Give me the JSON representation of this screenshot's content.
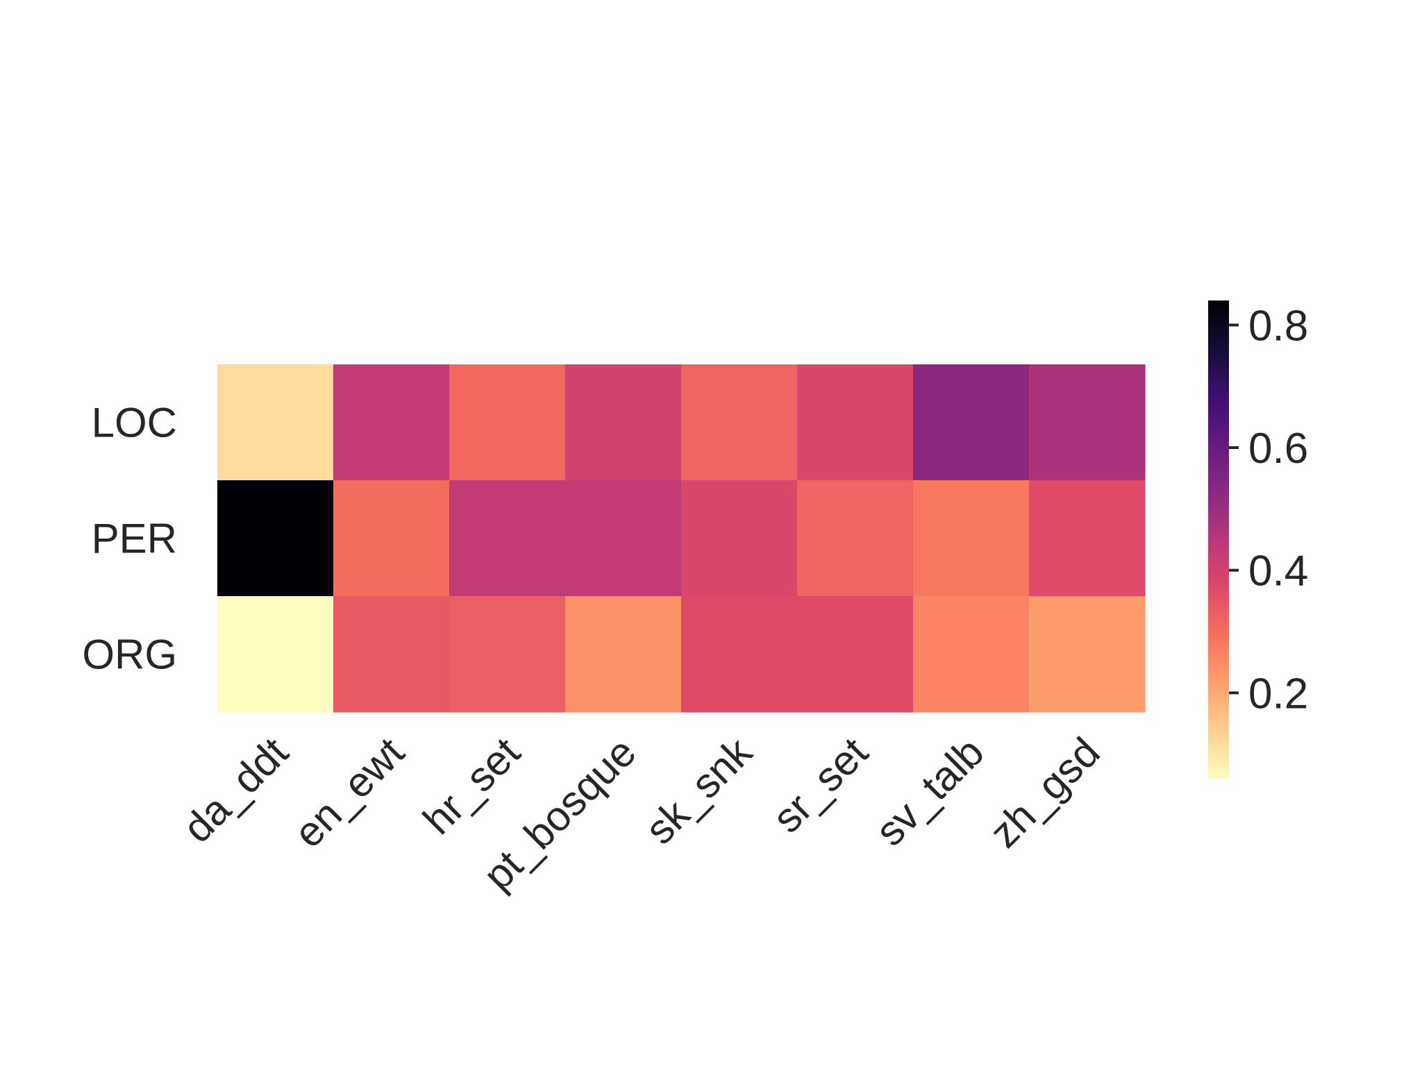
{
  "chart_data": {
    "type": "heatmap",
    "title": "",
    "xlabel": "",
    "ylabel": "",
    "x_categories": [
      "da_ddt",
      "en_ewt",
      "hr_set",
      "pt_bosque",
      "sk_snk",
      "sr_set",
      "sv_talb",
      "zh_gsd"
    ],
    "y_categories": [
      "LOC",
      "PER",
      "ORG"
    ],
    "values": [
      [
        0.12,
        0.43,
        0.31,
        0.4,
        0.32,
        0.38,
        0.53,
        0.47
      ],
      [
        0.84,
        0.3,
        0.43,
        0.43,
        0.38,
        0.32,
        0.28,
        0.37
      ],
      [
        0.06,
        0.34,
        0.33,
        0.24,
        0.37,
        0.37,
        0.26,
        0.22
      ]
    ],
    "colormap": "magma_r",
    "colorbar": {
      "min": 0.06,
      "max": 0.84,
      "ticks": [
        0.2,
        0.4,
        0.6,
        0.8
      ],
      "tick_labels": [
        "0.2",
        "0.4",
        "0.6",
        "0.8"
      ]
    },
    "grid": false,
    "legend": "colorbar-right"
  }
}
